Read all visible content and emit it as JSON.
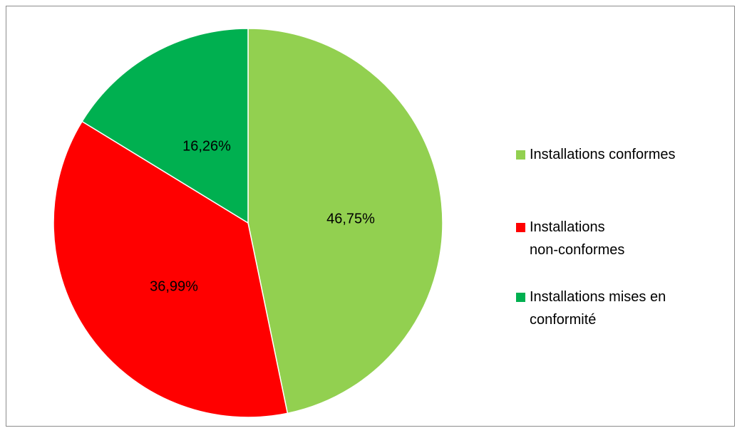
{
  "chart_data": {
    "type": "pie",
    "title": "",
    "start_angle_deg": 0,
    "direction": "clockwise",
    "legend_position": "right",
    "slices": [
      {
        "label": "Installations conformes",
        "value": 46.75,
        "display": "46,75%",
        "color": "#92d050"
      },
      {
        "label": "Installations non-conformes",
        "value": 36.99,
        "display": "36,99%",
        "color": "#ff0000"
      },
      {
        "label": "Installations mises en conformité",
        "value": 16.26,
        "display": "16,26%",
        "color": "#00b050"
      }
    ]
  }
}
